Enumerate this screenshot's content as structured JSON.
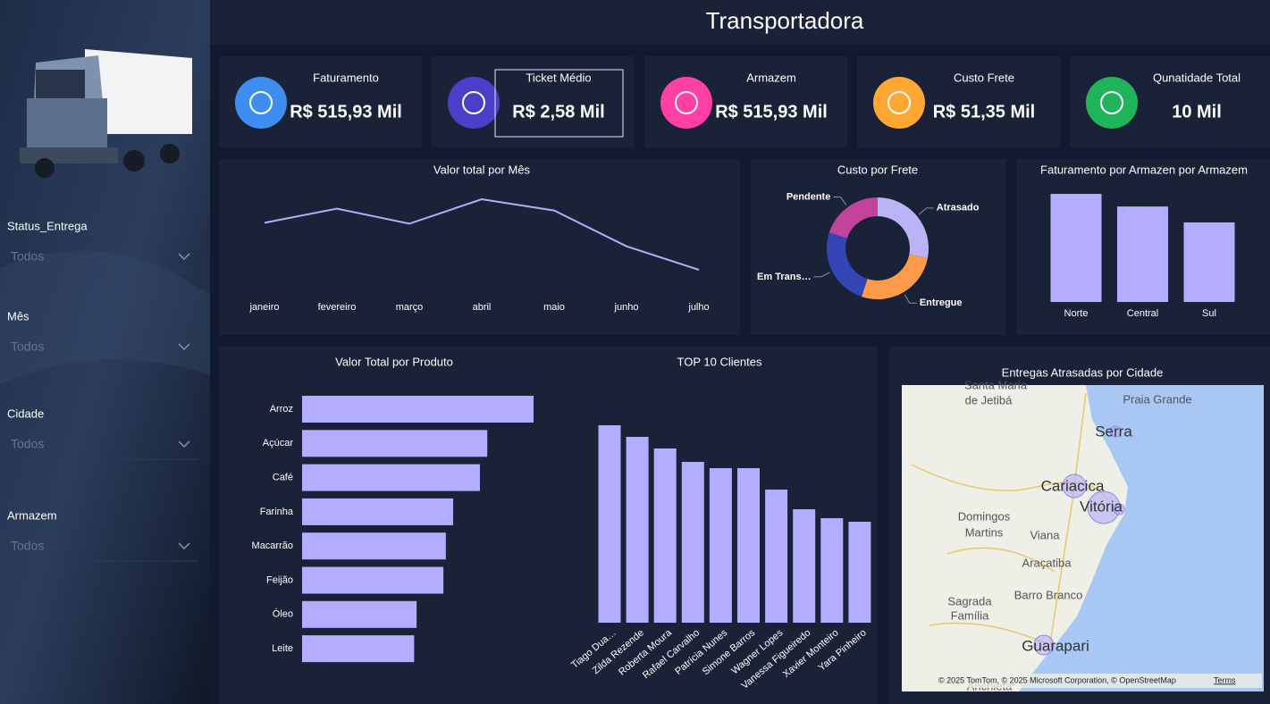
{
  "header": {
    "title": "Transportadora"
  },
  "kpis": [
    {
      "label": "Faturamento",
      "value": "R$ 515,93 Mil"
    },
    {
      "label": "Ticket Médio",
      "value": "R$ 2,58 Mil"
    },
    {
      "label": "Armazem",
      "value": "R$ 515,93 Mil"
    },
    {
      "label": "Custo Frete",
      "value": "R$ 51,35 Mil"
    },
    {
      "label": "Qunatidade Total",
      "value": "10 Mil"
    }
  ],
  "filters": [
    {
      "label": "Status_Entrega",
      "value": "Todos"
    },
    {
      "label": "Mês",
      "value": "Todos"
    },
    {
      "label": "Cidade",
      "value": "Todos"
    },
    {
      "label": "Armazem",
      "value": "Todos"
    }
  ],
  "chart_data": [
    {
      "type": "line",
      "title": "Valor total por Mês",
      "categories": [
        "janeiro",
        "fevereiro",
        "março",
        "abril",
        "maio",
        "junho",
        "julho"
      ],
      "values": [
        77,
        92,
        76,
        102,
        90,
        52,
        27
      ],
      "color": "#b4acff"
    },
    {
      "type": "donut",
      "title": "Custo por Frete",
      "categories": [
        "Atrasado",
        "Entregue",
        "Em Trans…",
        "Pendente"
      ],
      "values": [
        14.4,
        13.9,
        12.8,
        10.25
      ],
      "colors": [
        "#bab3f6",
        "#ff9a4a",
        "#3446b5",
        "#c4439a"
      ]
    },
    {
      "type": "bar",
      "title": "Faturamento por Armazen por Armazem",
      "categories": [
        "Norte",
        "Central",
        "Sul"
      ],
      "values": [
        197,
        174,
        145
      ],
      "color": "#b4acff"
    },
    {
      "type": "hbar",
      "title": "Valor  Total por Produto",
      "categories": [
        "Arroz",
        "Açúcar",
        "Café",
        "Farinha",
        "Macarrão",
        "Feijão",
        "Óleo",
        "Leite"
      ],
      "values": [
        95,
        76,
        73,
        62,
        59,
        58,
        47,
        46
      ],
      "color": "#b4acff"
    },
    {
      "type": "bar",
      "title": "TOP 10 Clientes",
      "categories": [
        "Tiago Dua…",
        "Zilda Rezende",
        "Roberta Moura",
        "Rafael Carvalho",
        "Patrícia Nunes",
        "Simone Barros",
        "Wagner Lopes",
        "Vanessa Figueiredo",
        "Xavier Monteiro",
        "Yara Pinheiro"
      ],
      "values": [
        22.1,
        20.8,
        19.5,
        18.0,
        17.3,
        17.3,
        14.9,
        12.7,
        11.7,
        11.3
      ],
      "color": "#b4acff"
    }
  ],
  "map": {
    "title": "Entregas Atrasadas por Cidade",
    "labels": [
      "Santa Maria",
      "de Jetibá",
      "Praia Grande",
      "Serra",
      "Cariacica",
      "Vitória",
      "Domingos",
      "Martins",
      "Viana",
      "Araçatiba",
      "Barro Branco",
      "Sagrada",
      "Família",
      "Guarapari",
      "Anchieta"
    ],
    "attribution": "© 2025 TomTom, © 2025 Microsoft Corporation, © OpenStreetMap",
    "terms": "Terms"
  }
}
